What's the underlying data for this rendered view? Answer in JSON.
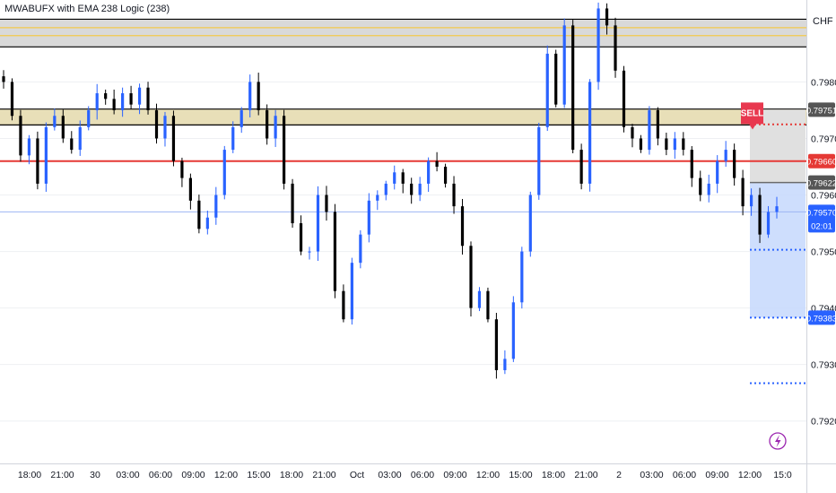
{
  "indicator_title": "MWABUFX with EMA 238 Logic (238)",
  "currency": "CHF",
  "colors": {
    "up": "#2962ff",
    "down": "#000000",
    "red_line": "#e53935",
    "zone_fill": "#d9d9d9",
    "gold": "#f2c94c",
    "sell_badge": "#e8384f",
    "target_fill": "#c6d8fd",
    "blue_label": "#2962ff",
    "dark_label": "#555555"
  },
  "chart_data": {
    "type": "candlestick",
    "symbol_currency": "CHF",
    "x_tick_labels": [
      "18:00",
      "21:00",
      "30",
      "03:00",
      "06:00",
      "09:00",
      "12:00",
      "15:00",
      "18:00",
      "21:00",
      "Oct",
      "03:00",
      "06:00",
      "09:00",
      "12:00",
      "15:00",
      "18:00",
      "21:00",
      "2",
      "03:00",
      "06:00",
      "09:00",
      "12:00",
      "15:0"
    ],
    "y_tick_labels": [
      "0.79800",
      "0.79700",
      "0.79600",
      "0.79500",
      "0.79400",
      "0.79300",
      "0.79200"
    ],
    "y_ticks": [
      0.798,
      0.797,
      0.796,
      0.795,
      0.794,
      0.793,
      0.792
    ],
    "ylim": [
      0.79125,
      0.79945
    ],
    "current_price_label": "0.79570",
    "countdown_label": "02:01",
    "levels": {
      "resistance_zone_top": [
        0.79911,
        0.79862
      ],
      "resistance_zone_mid": [
        0.79752,
        0.79724
      ],
      "red_line": 0.7966,
      "red_line_label": "0.79660",
      "sell_price": 0.79751,
      "sell_price_label": "0.79751",
      "entry_gray": 0.79622,
      "entry_gray_label": "0.79622",
      "current_price": 0.7957,
      "target_1": 0.79503,
      "target_2": 0.79383,
      "target_2_label": "0.79383",
      "target_3": 0.79267
    },
    "signal": {
      "label": "SELL",
      "price": 0.79751
    },
    "path": [
      0.798,
      0.7974,
      0.7967,
      0.797,
      0.7962,
      0.7972,
      0.7974,
      0.797,
      0.7968,
      0.7972,
      0.7975,
      0.7978,
      0.7977,
      0.7975,
      0.7978,
      0.7976,
      0.7979,
      0.7975,
      0.797,
      0.7974,
      0.7966,
      0.7963,
      0.7959,
      0.7954,
      0.7956,
      0.796,
      0.7968,
      0.7972,
      0.7975,
      0.798,
      0.7975,
      0.797,
      0.7974,
      0.7962,
      0.7955,
      0.795,
      0.795,
      0.796,
      0.7957,
      0.7943,
      0.7938,
      0.7948,
      0.7953,
      0.7959,
      0.796,
      0.7962,
      0.7964,
      0.7962,
      0.796,
      0.7962,
      0.7966,
      0.7965,
      0.7962,
      0.7958,
      0.7951,
      0.794,
      0.7943,
      0.7938,
      0.7929,
      0.7931,
      0.7941,
      0.795,
      0.796,
      0.7972,
      0.7985,
      0.7976,
      0.799,
      0.7968,
      0.7962,
      0.798,
      0.7993,
      0.799,
      0.7982,
      0.7972,
      0.797,
      0.7968,
      0.7975,
      0.797,
      0.7968,
      0.797,
      0.7968,
      0.7963,
      0.796,
      0.7962,
      0.7966,
      0.7968,
      0.7963,
      0.7958,
      0.796,
      0.7953,
      0.7957,
      0.7958
    ]
  }
}
